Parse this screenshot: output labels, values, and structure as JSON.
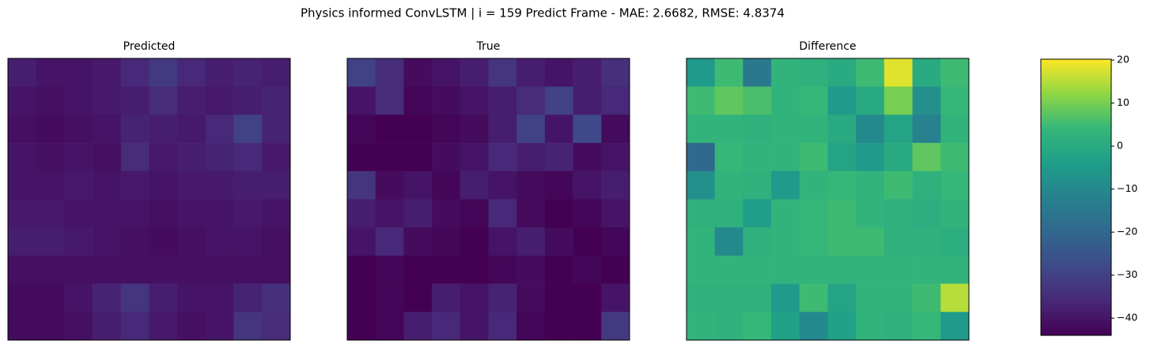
{
  "chart_data": {
    "type": "heatmap",
    "title": "Physics informed ConvLSTM | i = 159 Predict Frame - MAE: 2.6682, RMSE: 4.8374",
    "colormap": "viridis",
    "zlim": [
      -44,
      20.2
    ],
    "zticks": [
      {
        "value": -40,
        "label": "−40"
      },
      {
        "value": -30,
        "label": "−30"
      },
      {
        "value": -20,
        "label": "−20"
      },
      {
        "value": -10,
        "label": "−10"
      },
      0,
      10,
      20
    ],
    "panels": [
      {
        "title": "Predicted",
        "z": [
          [
            -38,
            -40,
            -40,
            -39,
            -36,
            -32,
            -36,
            -38,
            -37,
            -38
          ],
          [
            -40,
            -41,
            -40,
            -39,
            -38,
            -35,
            -38,
            -39,
            -38,
            -37
          ],
          [
            -41,
            -42,
            -41,
            -40,
            -37,
            -38,
            -39,
            -36,
            -30,
            -37
          ],
          [
            -40,
            -41,
            -40,
            -41,
            -35,
            -39,
            -38,
            -37,
            -36,
            -39
          ],
          [
            -40,
            -40,
            -39,
            -40,
            -39,
            -40,
            -39,
            -39,
            -38,
            -38
          ],
          [
            -39,
            -39,
            -40,
            -40,
            -40,
            -41,
            -40,
            -40,
            -39,
            -40
          ],
          [
            -38,
            -38,
            -39,
            -40,
            -41,
            -42,
            -41,
            -40,
            -40,
            -41
          ],
          [
            -41,
            -41,
            -41,
            -41,
            -41,
            -41,
            -41,
            -41,
            -41,
            -41
          ],
          [
            -42,
            -42,
            -40,
            -37,
            -33,
            -38,
            -40,
            -40,
            -37,
            -34
          ],
          [
            -42,
            -42,
            -41,
            -38,
            -36,
            -39,
            -41,
            -40,
            -33,
            -35
          ]
        ]
      },
      {
        "title": "True",
        "z": [
          [
            -30,
            -35,
            -42,
            -40,
            -38,
            -33,
            -38,
            -40,
            -38,
            -34
          ],
          [
            -40,
            -35,
            -43,
            -42,
            -40,
            -38,
            -35,
            -30,
            -38,
            -36
          ],
          [
            -43,
            -44,
            -44,
            -43,
            -42,
            -38,
            -30,
            -40,
            -28,
            -42
          ],
          [
            -44,
            -44,
            -44,
            -42,
            -40,
            -36,
            -38,
            -37,
            -42,
            -40
          ],
          [
            -33,
            -42,
            -40,
            -43,
            -38,
            -40,
            -42,
            -43,
            -40,
            -38
          ],
          [
            -38,
            -40,
            -38,
            -42,
            -43,
            -36,
            -42,
            -44,
            -43,
            -40
          ],
          [
            -40,
            -36,
            -42,
            -43,
            -44,
            -40,
            -38,
            -42,
            -44,
            -43
          ],
          [
            -44,
            -43,
            -44,
            -44,
            -44,
            -43,
            -42,
            -44,
            -43,
            -44
          ],
          [
            -44,
            -43,
            -44,
            -38,
            -40,
            -37,
            -42,
            -44,
            -44,
            -40
          ],
          [
            -44,
            -43,
            -38,
            -36,
            -40,
            -36,
            -43,
            -44,
            -44,
            -32
          ]
        ]
      },
      {
        "title": "Difference",
        "z": [
          [
            -5,
            5,
            -15,
            3,
            2,
            0,
            5,
            18,
            0,
            5
          ],
          [
            5,
            8,
            6,
            3,
            4,
            -5,
            0,
            10,
            -8,
            4
          ],
          [
            3,
            3,
            2,
            3,
            3,
            0,
            -10,
            -2,
            -12,
            3
          ],
          [
            -20,
            4,
            3,
            3,
            5,
            -2,
            -5,
            0,
            8,
            5
          ],
          [
            -8,
            3,
            2,
            -5,
            3,
            4,
            3,
            5,
            2,
            4
          ],
          [
            2,
            2,
            -4,
            3,
            4,
            5,
            3,
            2,
            1,
            3
          ],
          [
            3,
            -10,
            2,
            3,
            4,
            5,
            5,
            2,
            2,
            1
          ],
          [
            3,
            3,
            3,
            3,
            3,
            3,
            3,
            3,
            3,
            3
          ],
          [
            2,
            2,
            2,
            -5,
            5,
            -2,
            3,
            3,
            5,
            15
          ],
          [
            3,
            2,
            4,
            -3,
            -10,
            -3,
            3,
            2,
            4,
            -5
          ]
        ]
      }
    ]
  }
}
